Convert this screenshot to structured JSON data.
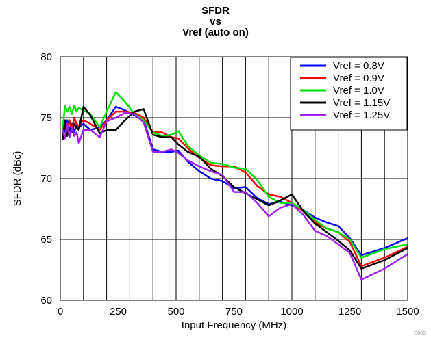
{
  "chart_data": {
    "type": "line",
    "title_lines": [
      "SFDR",
      "vs",
      "Vref (auto on)"
    ],
    "xlabel": "Input Frequency (MHz)",
    "ylabel": "SFDR (dBc)",
    "xlim": [
      0,
      1500
    ],
    "ylim": [
      60,
      80
    ],
    "xticks": [
      0,
      250,
      500,
      750,
      1000,
      1250,
      1500
    ],
    "yticks": [
      60,
      65,
      70,
      75,
      80
    ],
    "grid": true,
    "legend_position": "top-right",
    "series": [
      {
        "name": "Vref = 0.8V",
        "color": "#0000ff",
        "x": [
          10,
          20,
          30,
          40,
          50,
          60,
          70,
          80,
          100,
          130,
          170,
          200,
          240,
          280,
          320,
          360,
          400,
          440,
          480,
          510,
          550,
          600,
          650,
          700,
          750,
          800,
          850,
          900,
          950,
          1000,
          1050,
          1100,
          1150,
          1200,
          1250,
          1300,
          1400,
          1500
        ],
        "y": [
          73.5,
          74.0,
          74.8,
          74.0,
          74.5,
          73.8,
          74.5,
          74.2,
          74.5,
          74.0,
          74.2,
          74.8,
          75.9,
          75.6,
          75.2,
          74.8,
          72.4,
          72.2,
          72.2,
          72.3,
          71.4,
          70.6,
          70.0,
          69.8,
          69.2,
          69.3,
          68.4,
          67.9,
          68.1,
          67.8,
          67.4,
          66.8,
          66.4,
          66.1,
          65.1,
          63.7,
          64.3,
          65.1
        ]
      },
      {
        "name": "Vref = 0.9V",
        "color": "#ff0000",
        "x": [
          10,
          20,
          30,
          40,
          50,
          60,
          70,
          80,
          100,
          130,
          170,
          200,
          240,
          280,
          320,
          360,
          400,
          440,
          480,
          510,
          550,
          600,
          650,
          700,
          750,
          800,
          850,
          900,
          950,
          1000,
          1050,
          1100,
          1150,
          1200,
          1250,
          1300,
          1400,
          1500
        ],
        "y": [
          73.5,
          74.5,
          73.8,
          74.8,
          74.0,
          75.0,
          74.5,
          74.3,
          74.8,
          74.5,
          74.0,
          74.8,
          75.5,
          75.5,
          75.4,
          75.0,
          73.8,
          73.8,
          73.4,
          73.3,
          72.5,
          71.7,
          71.1,
          71.0,
          71.0,
          70.5,
          69.4,
          68.7,
          68.5,
          68.0,
          67.3,
          66.4,
          65.9,
          65.6,
          64.8,
          62.8,
          63.5,
          64.4
        ]
      },
      {
        "name": "Vref = 1.0V",
        "color": "#00e000",
        "x": [
          10,
          20,
          30,
          40,
          50,
          60,
          70,
          80,
          100,
          130,
          170,
          200,
          240,
          280,
          320,
          360,
          400,
          440,
          480,
          510,
          550,
          600,
          650,
          700,
          750,
          800,
          850,
          900,
          950,
          1000,
          1050,
          1100,
          1150,
          1200,
          1250,
          1300,
          1400,
          1500
        ],
        "y": [
          74.0,
          76.0,
          75.5,
          75.9,
          75.3,
          76.0,
          75.5,
          75.8,
          75.6,
          75.3,
          74.2,
          75.5,
          77.1,
          76.3,
          75.3,
          74.8,
          73.8,
          73.5,
          73.6,
          73.9,
          72.7,
          71.9,
          71.3,
          71.2,
          70.9,
          70.8,
          69.9,
          68.5,
          68.0,
          68.0,
          67.4,
          66.6,
          65.9,
          65.6,
          65.0,
          63.5,
          64.2,
          64.6
        ]
      },
      {
        "name": "Vref = 1.15V",
        "color": "#000000",
        "x": [
          10,
          20,
          30,
          40,
          50,
          60,
          70,
          80,
          100,
          130,
          170,
          200,
          240,
          280,
          320,
          360,
          400,
          440,
          480,
          510,
          550,
          600,
          650,
          700,
          750,
          800,
          850,
          900,
          950,
          1000,
          1050,
          1100,
          1150,
          1200,
          1250,
          1300,
          1400,
          1500
        ],
        "y": [
          73.2,
          74.8,
          73.5,
          74.0,
          73.8,
          74.5,
          74.2,
          74.0,
          75.9,
          75.2,
          73.7,
          74.0,
          74.0,
          74.8,
          75.5,
          75.7,
          73.6,
          73.4,
          73.4,
          72.8,
          72.2,
          71.8,
          70.8,
          70.2,
          69.3,
          68.8,
          68.3,
          67.8,
          68.2,
          68.7,
          67.3,
          66.3,
          65.6,
          64.9,
          64.1,
          62.6,
          63.3,
          64.3
        ]
      },
      {
        "name": "Vref = 1.25V",
        "color": "#a020f0",
        "x": [
          10,
          20,
          30,
          40,
          50,
          60,
          70,
          80,
          100,
          130,
          170,
          200,
          240,
          280,
          320,
          360,
          400,
          440,
          480,
          510,
          550,
          600,
          650,
          700,
          750,
          800,
          850,
          900,
          950,
          1000,
          1050,
          1100,
          1150,
          1200,
          1250,
          1300,
          1400,
          1500
        ],
        "y": [
          74.0,
          73.3,
          74.5,
          73.4,
          74.2,
          73.5,
          73.8,
          72.9,
          74.0,
          74.0,
          73.4,
          74.7,
          75.0,
          75.4,
          75.3,
          74.6,
          72.2,
          72.2,
          72.4,
          72.1,
          71.5,
          71.0,
          70.6,
          70.3,
          68.9,
          68.9,
          68.0,
          66.9,
          67.6,
          67.9,
          67.0,
          65.7,
          65.3,
          64.6,
          63.9,
          61.7,
          62.6,
          63.8
        ]
      }
    ]
  }
}
